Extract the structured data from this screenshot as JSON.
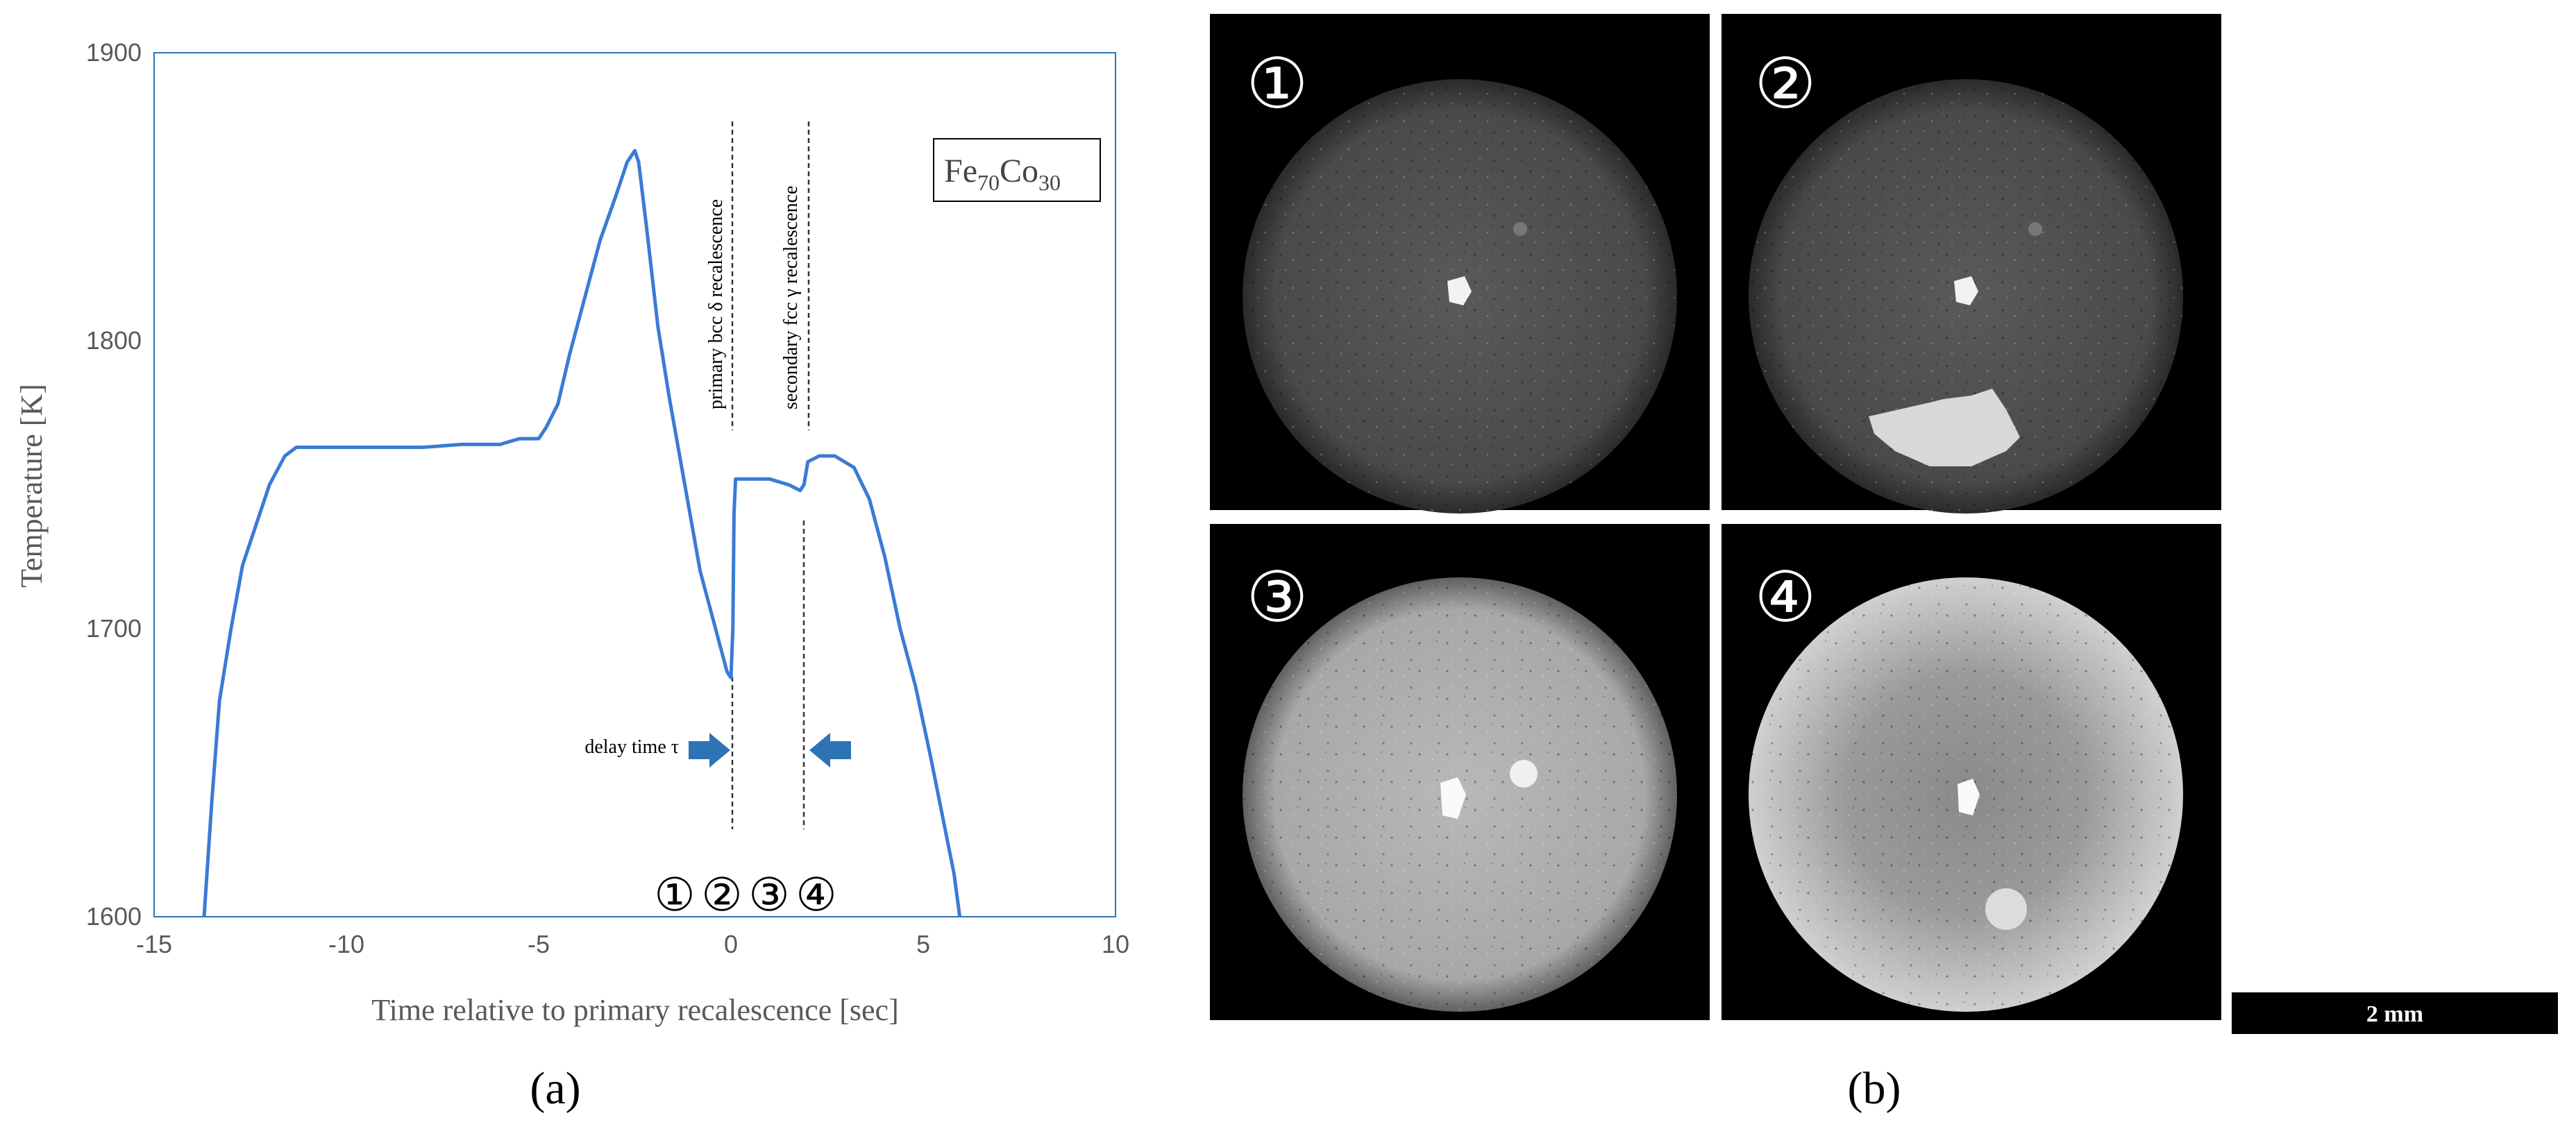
{
  "chart_data": {
    "type": "line",
    "xlabel": "Time relative to primary recalescence [sec]",
    "ylabel": "Temperature [K]",
    "xlim": [
      -15,
      10
    ],
    "ylim": [
      1600,
      1900
    ],
    "x_ticks": [
      "-15",
      "-10",
      "-5",
      "0",
      "5",
      "10"
    ],
    "y_ticks": [
      "1600",
      "1700",
      "1800",
      "1900"
    ],
    "grid": false,
    "series": [
      {
        "color": "#3a7bd5",
        "points": [
          [
            -13.7,
            1600
          ],
          [
            -13.5,
            1640
          ],
          [
            -13.3,
            1675
          ],
          [
            -13.0,
            1700
          ],
          [
            -12.7,
            1722
          ],
          [
            -12.3,
            1738
          ],
          [
            -12.0,
            1750
          ],
          [
            -11.6,
            1760
          ],
          [
            -11.3,
            1763
          ],
          [
            -11.0,
            1763
          ],
          [
            -10.0,
            1763
          ],
          [
            -8.0,
            1763
          ],
          [
            -7.0,
            1764
          ],
          [
            -6.0,
            1764
          ],
          [
            -5.5,
            1766
          ],
          [
            -5.0,
            1766
          ],
          [
            -4.8,
            1770
          ],
          [
            -4.5,
            1778
          ],
          [
            -4.2,
            1795
          ],
          [
            -3.8,
            1815
          ],
          [
            -3.4,
            1835
          ],
          [
            -3.0,
            1850
          ],
          [
            -2.7,
            1862
          ],
          [
            -2.5,
            1866
          ],
          [
            -2.4,
            1862
          ],
          [
            -2.2,
            1840
          ],
          [
            -1.9,
            1805
          ],
          [
            -1.6,
            1780
          ],
          [
            -1.2,
            1750
          ],
          [
            -0.8,
            1720
          ],
          [
            -0.4,
            1700
          ],
          [
            -0.1,
            1685
          ],
          [
            0.0,
            1683
          ],
          [
            0.05,
            1700
          ],
          [
            0.08,
            1740
          ],
          [
            0.12,
            1752
          ],
          [
            0.5,
            1752
          ],
          [
            1.0,
            1752
          ],
          [
            1.5,
            1750
          ],
          [
            1.8,
            1748
          ],
          [
            1.9,
            1750
          ],
          [
            2.0,
            1758
          ],
          [
            2.3,
            1760
          ],
          [
            2.7,
            1760
          ],
          [
            3.2,
            1756
          ],
          [
            3.6,
            1745
          ],
          [
            4.0,
            1725
          ],
          [
            4.4,
            1700
          ],
          [
            4.8,
            1680
          ],
          [
            5.2,
            1655
          ],
          [
            5.5,
            1635
          ],
          [
            5.8,
            1615
          ],
          [
            5.95,
            1600
          ]
        ]
      }
    ],
    "annotations": {
      "composition_base1": "Fe",
      "composition_sub1": "70",
      "composition_base2": "Co",
      "composition_sub2": "30",
      "primary_label": "primary bcc δ recalescence",
      "secondary_label": "secondary fcc γ recalescence",
      "primary_x": 0,
      "secondary_x": 2,
      "delay_label": "delay time τ",
      "arrow_color": "#2e74b5",
      "markers": [
        "①",
        "②",
        "③",
        "④"
      ]
    }
  },
  "panel_labels": {
    "a": "(a)",
    "b": "(b)"
  },
  "images": {
    "frames": [
      {
        "marker": "①",
        "description_id": "frame-1"
      },
      {
        "marker": "②",
        "description_id": "frame-2"
      },
      {
        "marker": "③",
        "description_id": "frame-3"
      },
      {
        "marker": "④",
        "description_id": "frame-4"
      }
    ],
    "scale_bar_label": "2 mm"
  }
}
